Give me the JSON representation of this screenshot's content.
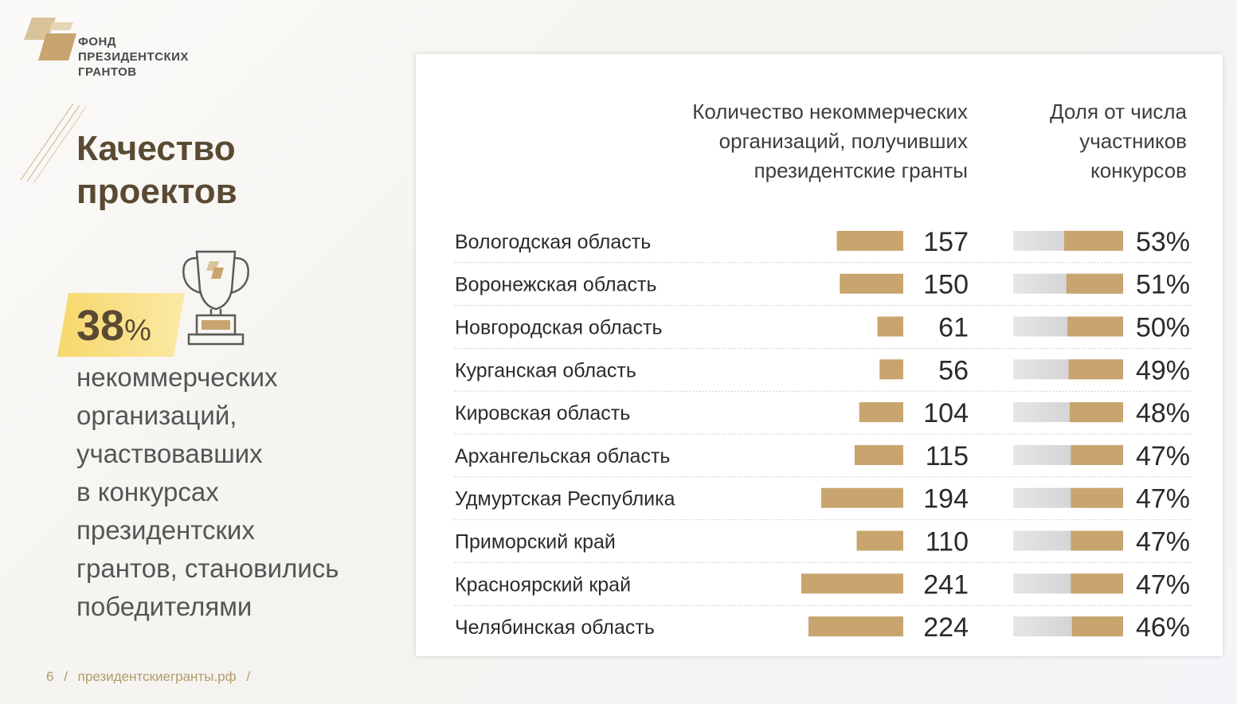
{
  "logo": {
    "lines": [
      "ФОНД",
      "ПРЕЗИДЕНТСКИХ",
      "ГРАНТОВ"
    ]
  },
  "title": {
    "lines": [
      "Качество",
      "проектов"
    ]
  },
  "highlight": {
    "value": "38",
    "unit": "%"
  },
  "description": {
    "lines": [
      "некоммерческих",
      "организаций,",
      "участвовавших",
      "в конкурсах",
      "президентских",
      "грантов, становились",
      "победителями"
    ]
  },
  "footer": {
    "page": "6",
    "sep": "/",
    "site": "президентскиегранты.рф"
  },
  "colors": {
    "gold": "#c8a46e",
    "gold_dark": "#b89461",
    "grey": "#d3d3d3",
    "brown": "#5a4a33",
    "yellow": "#f6d36a"
  },
  "chart_data": {
    "type": "table",
    "columns": [
      "Количество некоммерческих организаций, получивших президентские гранты",
      "Доля от числа участников конкурсов"
    ],
    "column_header_lines": {
      "count": [
        "Количество некоммерческих",
        "организаций, получивших",
        "президентские гранты"
      ],
      "share": [
        "Доля от числа",
        "участников",
        "конкурсов"
      ]
    },
    "rows": [
      {
        "region": "Вологодская область",
        "count": 157,
        "share": 53
      },
      {
        "region": "Воронежская область",
        "count": 150,
        "share": 51
      },
      {
        "region": "Новгородская область",
        "count": 61,
        "share": 50
      },
      {
        "region": "Курганская область",
        "count": 56,
        "share": 49
      },
      {
        "region": "Кировская область",
        "count": 104,
        "share": 48
      },
      {
        "region": "Архангельская область",
        "count": 115,
        "share": 47
      },
      {
        "region": "Удмуртская Республика",
        "count": 194,
        "share": 47
      },
      {
        "region": "Приморский край",
        "count": 110,
        "share": 47
      },
      {
        "region": "Красноярский край",
        "count": 241,
        "share": 47
      },
      {
        "region": "Челябинская область",
        "count": 224,
        "share": 46
      }
    ],
    "share_suffix": "%"
  }
}
